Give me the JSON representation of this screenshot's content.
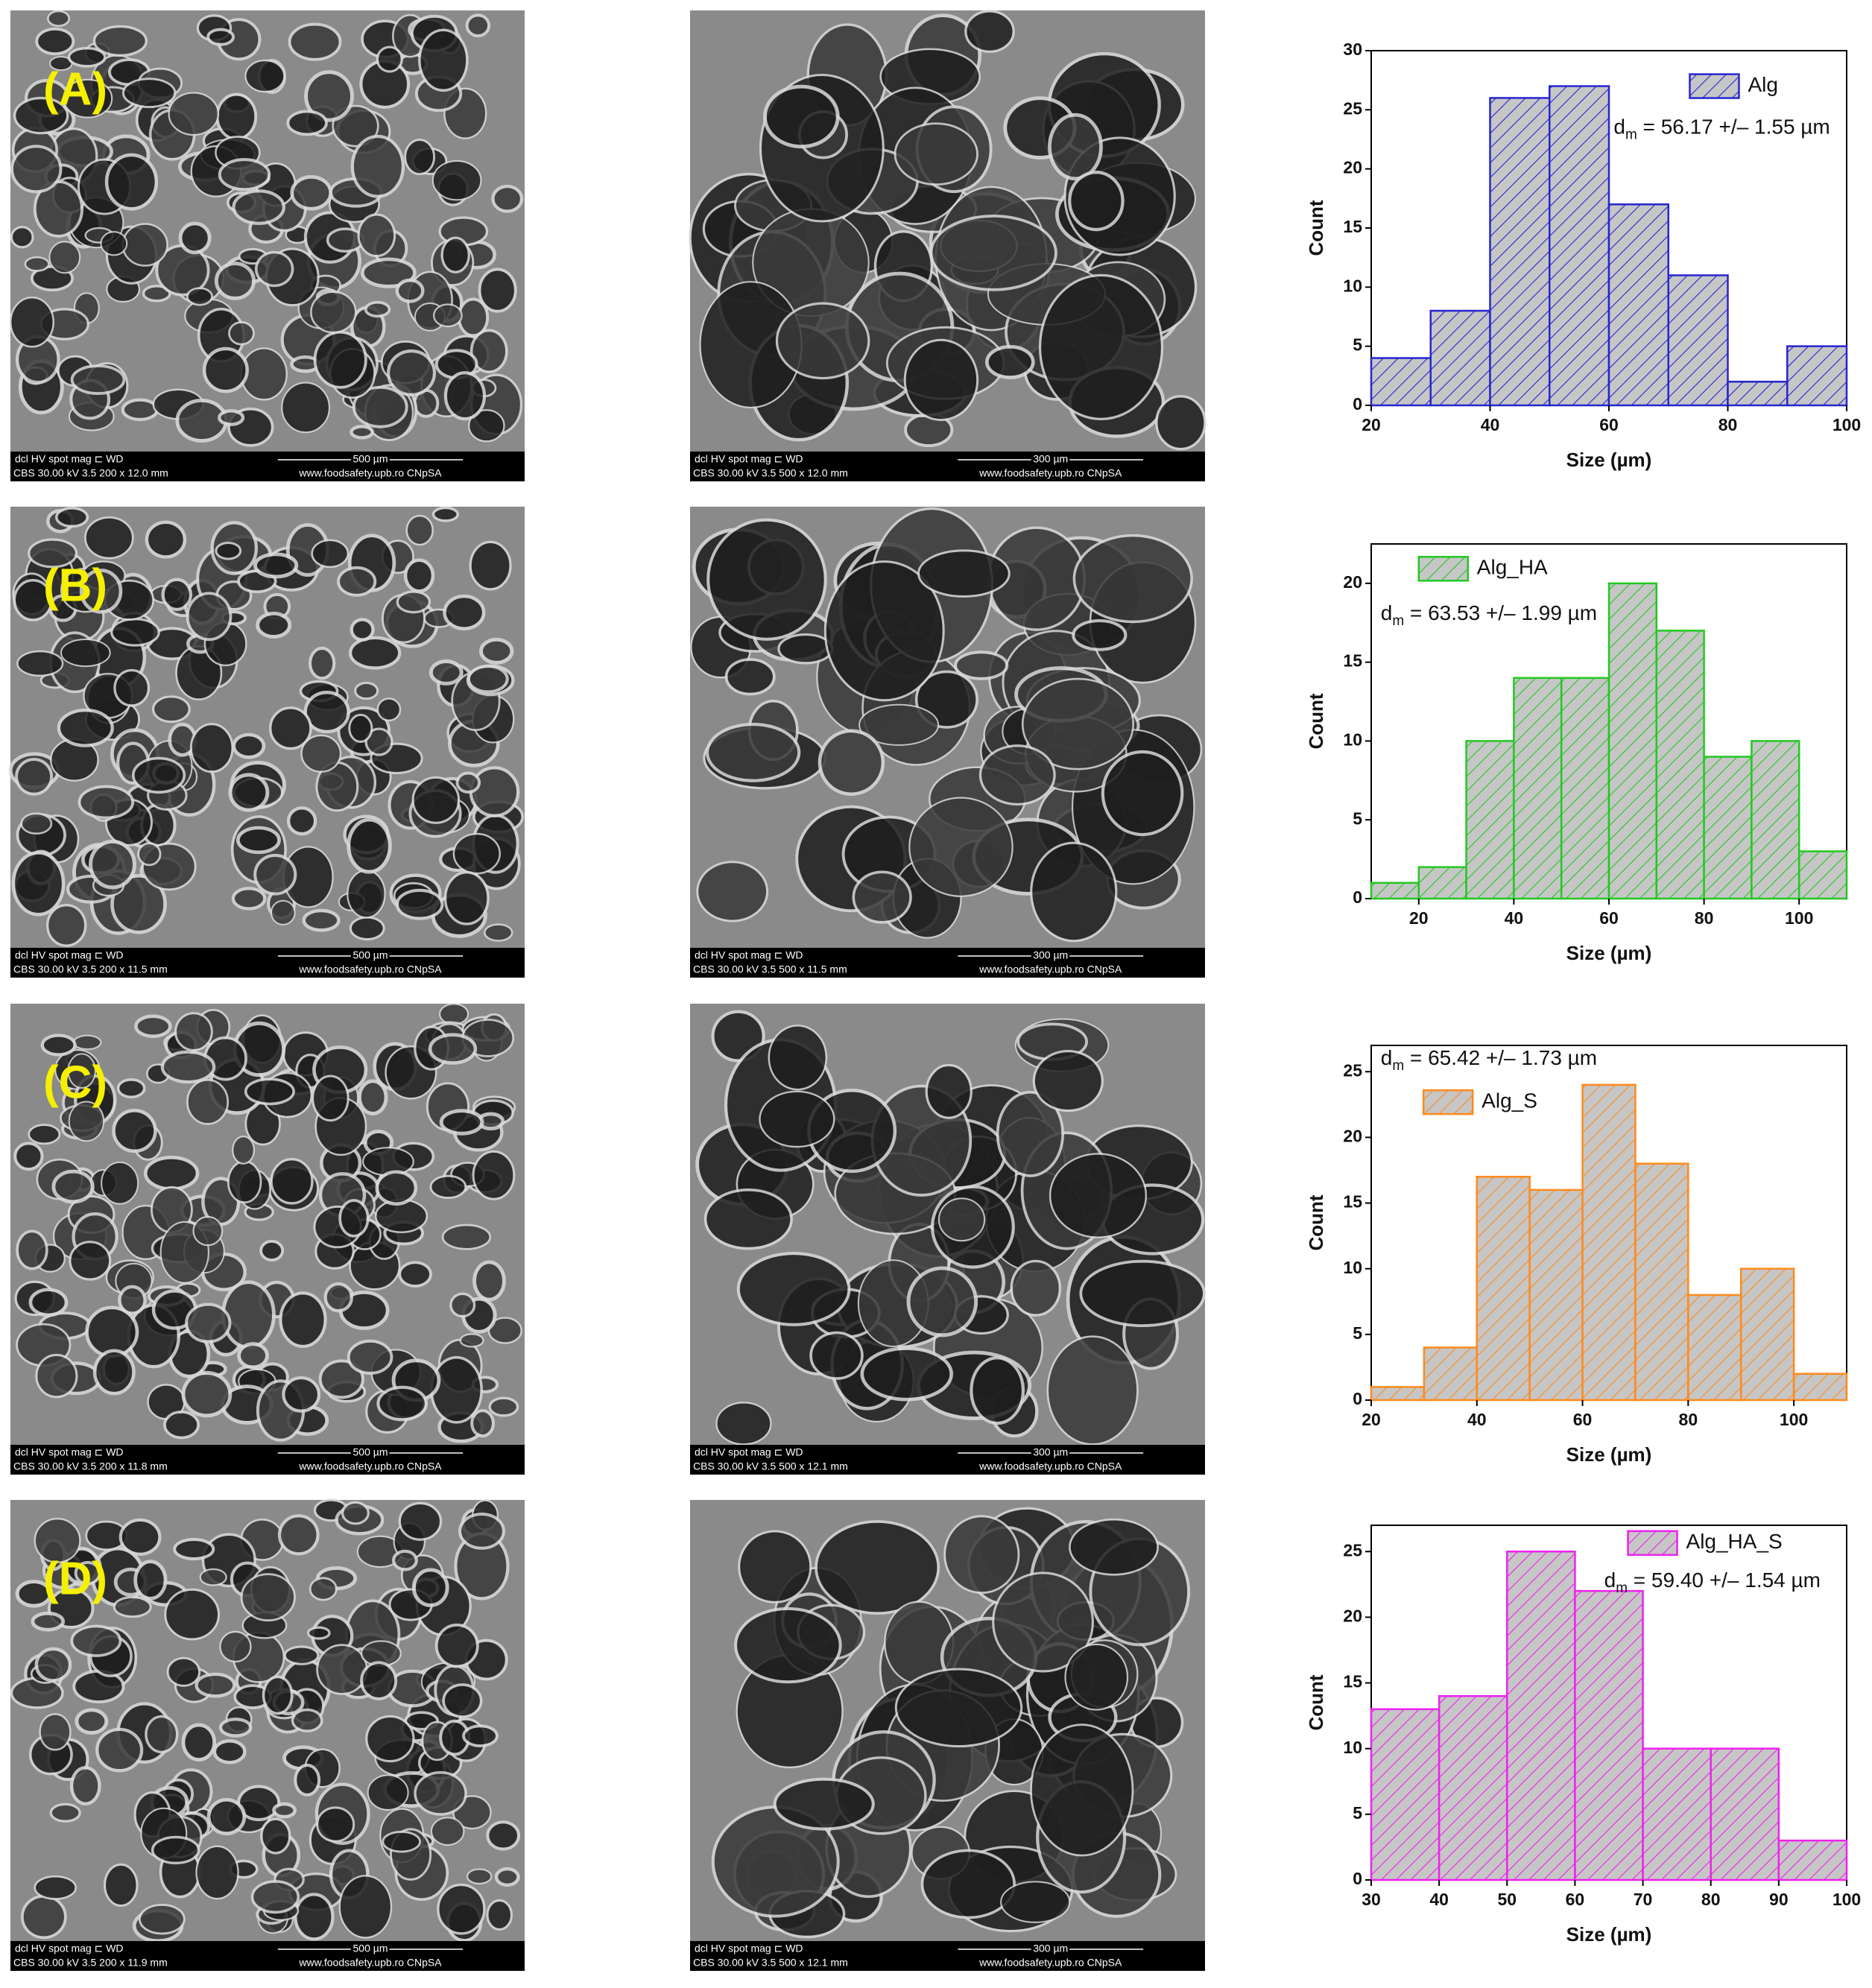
{
  "chart_data": [
    {
      "type": "histogram",
      "bins": [
        20,
        30,
        40,
        50,
        60,
        70,
        80,
        90,
        100
      ],
      "series": [
        {
          "name": "Alg",
          "color": "#2626d0",
          "values": [
            4,
            8,
            26,
            27,
            17,
            11,
            2,
            5
          ]
        }
      ],
      "annotation": [
        "d",
        "m",
        " = 56.17 +/– 1.55 µm"
      ],
      "xlabel": "Size (µm)",
      "ylabel": "Count",
      "xlim": [
        20,
        100
      ],
      "xticks": [
        20,
        40,
        60,
        80,
        100
      ],
      "ylim": [
        0,
        30
      ],
      "yticks": [
        0,
        5,
        10,
        15,
        20,
        25,
        30
      ]
    },
    {
      "type": "histogram",
      "bins": [
        10,
        20,
        30,
        40,
        50,
        60,
        70,
        80,
        90,
        100,
        110
      ],
      "series": [
        {
          "name": "Alg_HA",
          "color": "#22c822",
          "values": [
            1,
            2,
            10,
            14,
            14,
            20,
            17,
            9,
            10,
            3
          ]
        }
      ],
      "annotation": [
        "d",
        "m",
        " = 63.53 +/– 1.99 µm"
      ],
      "xlabel": "Size (µm)",
      "ylabel": "Count",
      "xlim": [
        10,
        110
      ],
      "xticks": [
        20,
        40,
        60,
        80,
        100
      ],
      "ylim": [
        0,
        22.5
      ],
      "yticks": [
        0,
        5,
        10,
        15,
        20
      ]
    },
    {
      "type": "histogram",
      "bins": [
        20,
        30,
        40,
        50,
        60,
        70,
        80,
        90,
        100,
        110
      ],
      "series": [
        {
          "name": "Alg_S",
          "color": "#ff8a1c",
          "values": [
            1,
            4,
            17,
            16,
            24,
            18,
            8,
            10,
            2
          ]
        }
      ],
      "annotation": [
        "d",
        "m",
        " = 65.42 +/– 1.73 µm"
      ],
      "xlabel": "Size (µm)",
      "ylabel": "Count",
      "xlim": [
        20,
        110
      ],
      "xticks": [
        20,
        40,
        60,
        80,
        100
      ],
      "ylim": [
        0,
        27
      ],
      "yticks": [
        0,
        5,
        10,
        15,
        20,
        25
      ]
    },
    {
      "type": "histogram",
      "bins": [
        30,
        40,
        50,
        60,
        70,
        80,
        90,
        100
      ],
      "series": [
        {
          "name": "Alg_HA_S",
          "color": "#ee22ee",
          "values": [
            13,
            14,
            25,
            22,
            10,
            10,
            3
          ]
        }
      ],
      "annotation": [
        "d",
        "m",
        " = 59.40 +/– 1.54 µm"
      ],
      "xlabel": "Size (µm)",
      "ylabel": "Count",
      "xlim": [
        30,
        100
      ],
      "xticks": [
        30,
        40,
        50,
        60,
        70,
        80,
        90,
        100
      ],
      "ylim": [
        0,
        27
      ],
      "yticks": [
        0,
        5,
        10,
        15,
        20,
        25
      ]
    }
  ],
  "panels": [
    {
      "label": "(A)",
      "images": [
        {
          "header": "dcl    HV    spot mag ⊏    WD",
          "params": "CBS 30.00 kV  3.5   200 x  12.0 mm",
          "scale": "500 µm",
          "site": "www.foodsafety.upb.ro CNpSA"
        },
        {
          "header": "dcl    HV    spot mag ⊏    WD",
          "params": "CBS 30.00 kV  3.5   500 x  12.0 mm",
          "scale": "300 µm",
          "site": "www.foodsafety.upb.ro CNpSA"
        }
      ]
    },
    {
      "label": "(B)",
      "images": [
        {
          "header": "dcl    HV    spot mag ⊏    WD",
          "params": "CBS 30.00 kV  3.5   200 x  11.5 mm",
          "scale": "500 µm",
          "site": "www.foodsafety.upb.ro CNpSA"
        },
        {
          "header": "dcl    HV    spot mag ⊏    WD",
          "params": "CBS 30.00 kV  3.5   500 x  11.5 mm",
          "scale": "300 µm",
          "site": "www.foodsafety.upb.ro CNpSA"
        }
      ]
    },
    {
      "label": "(C)",
      "images": [
        {
          "header": "dcl    HV    spot mag ⊏    WD",
          "params": "CBS 30.00 kV  3.5   200 x  11.8 mm",
          "scale": "500 µm",
          "site": "www.foodsafety.upb.ro CNpSA"
        },
        {
          "header": "dcl    HV    spot mag ⊏    WD",
          "params": "CBS 30.00 kV  3.5   500 x  12.1 mm",
          "scale": "300 µm",
          "site": "www.foodsafety.upb.ro CNpSA"
        }
      ]
    },
    {
      "label": "(D)",
      "images": [
        {
          "header": "dcl    HV    spot mag ⊏    WD",
          "params": "CBS 30.00 kV  3.5   200 x  11.9 mm",
          "scale": "500 µm",
          "site": "www.foodsafety.upb.ro CNpSA"
        },
        {
          "header": "dcl    HV    spot mag ⊏    WD",
          "params": "CBS 30.00 kV  3.5   500 x  12.1 mm",
          "scale": "300 µm",
          "site": "www.foodsafety.upb.ro CNpSA"
        }
      ]
    }
  ]
}
